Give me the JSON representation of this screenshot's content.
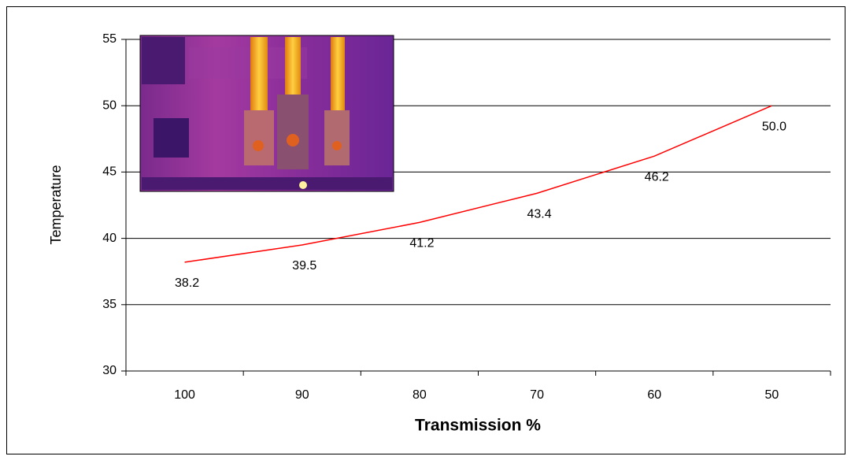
{
  "chart_data": {
    "type": "line",
    "x_label": "Transmission %",
    "y_label": "Temperature",
    "categories": [
      "100",
      "90",
      "80",
      "70",
      "60",
      "50"
    ],
    "values": [
      38.2,
      39.5,
      41.2,
      43.4,
      46.2,
      50.0
    ],
    "value_labels": [
      "38.2",
      "39.5",
      "41.2",
      "43.4",
      "46.2",
      "50.0"
    ],
    "color": "#ff0000",
    "ylim": [
      30,
      55
    ],
    "yticks": [
      30,
      35,
      40,
      45,
      50,
      55
    ],
    "grid": true
  }
}
